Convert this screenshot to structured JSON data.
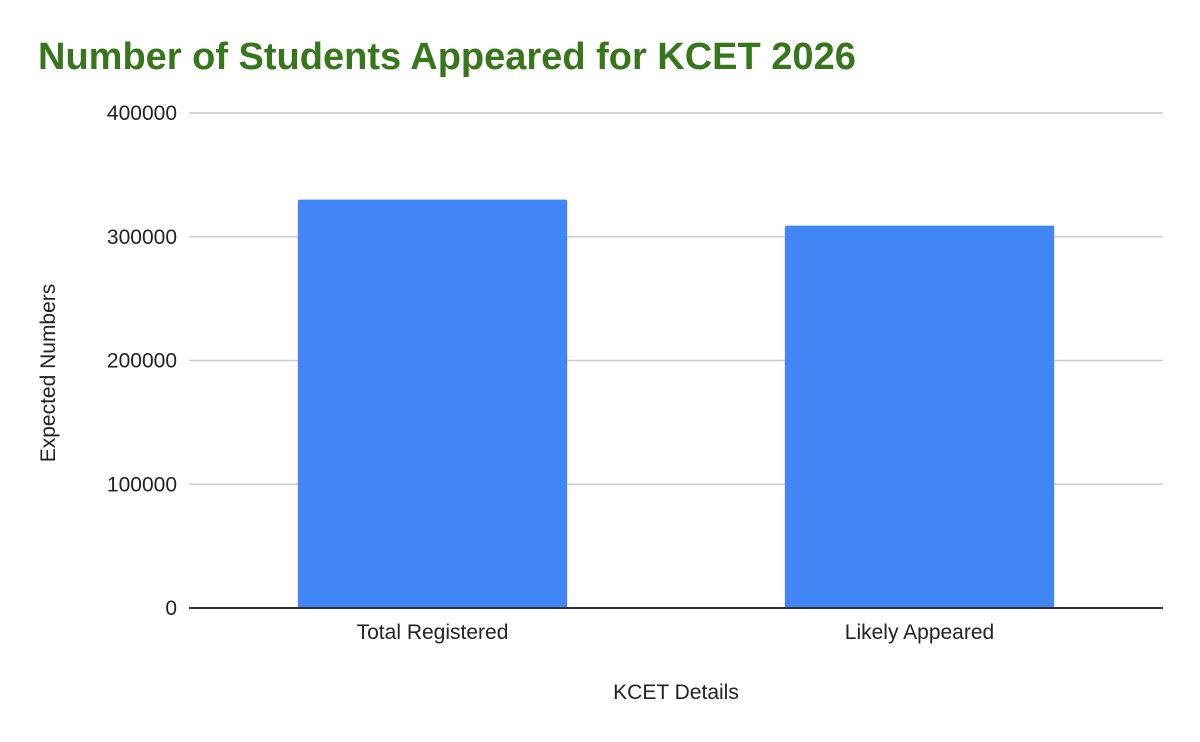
{
  "colors": {
    "title": "#38761d",
    "bar": "#4285f4",
    "grid": "#cccccc",
    "baseline": "#333333",
    "text": "#222222"
  },
  "chart_data": {
    "type": "bar",
    "title": "Number of Students Appeared for KCET 2026",
    "xlabel": "KCET Details",
    "ylabel": "Expected Numbers",
    "categories": [
      "Total Registered",
      "Likely Appeared"
    ],
    "values": [
      330000,
      309000
    ],
    "ylim": [
      0,
      400000
    ],
    "yticks": [
      0,
      100000,
      200000,
      300000,
      400000
    ],
    "ytick_labels": [
      "0",
      "100000",
      "200000",
      "300000",
      "400000"
    ],
    "grid": true,
    "legend": "none"
  }
}
